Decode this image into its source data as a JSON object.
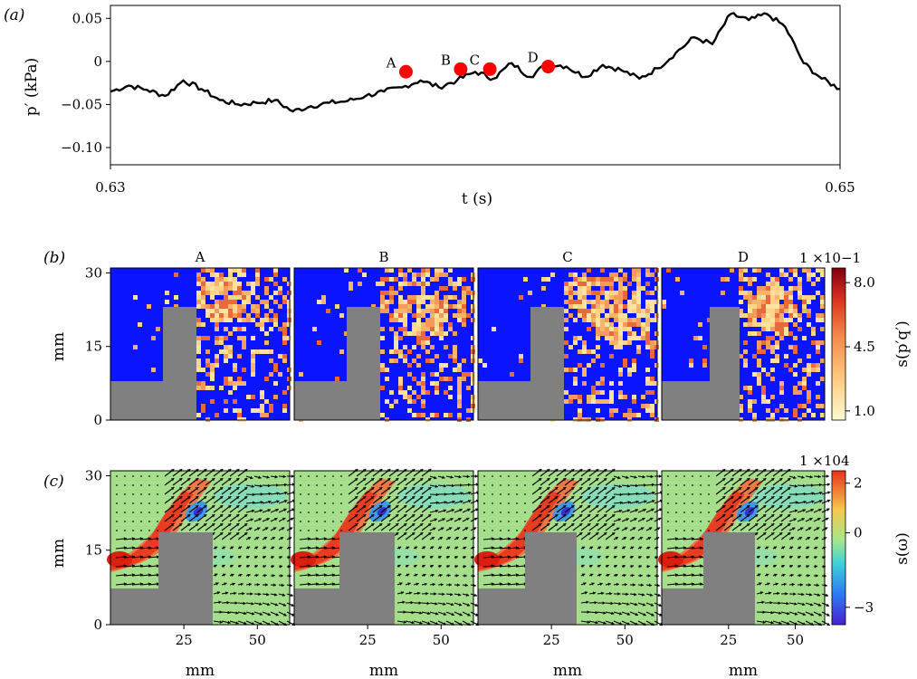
{
  "colors": {
    "pressure_line": "#000000",
    "marker": "#ff0000",
    "background_b": "#0a14ff",
    "bluff_body": "#808080",
    "quiver": "#000000"
  },
  "chart_data": [
    {
      "type": "line",
      "panel_label": "(a)",
      "xlabel": "t (s)",
      "ylabel": "p′ (kPa)",
      "xlim": [
        0.63,
        0.65
      ],
      "ylim": [
        -0.12,
        0.065
      ],
      "x_ticks": [
        "0.63",
        "0.65"
      ],
      "y_ticks": [
        "0.05",
        "0",
        "−0.05",
        "−0.10"
      ],
      "x_tick_values": [
        0.63,
        0.65
      ],
      "y_tick_values": [
        0.05,
        0,
        -0.05,
        -0.1
      ],
      "series": [
        {
          "x": [
            0.63,
            0.6305,
            0.631,
            0.6315,
            0.632,
            0.6325,
            0.633,
            0.6335,
            0.634,
            0.6345,
            0.635,
            0.6355,
            0.636,
            0.6365,
            0.637,
            0.6375,
            0.638,
            0.6385,
            0.639,
            0.6395,
            0.64,
            0.6405,
            0.641,
            0.6415,
            0.642,
            0.6425,
            0.643,
            0.6435,
            0.644,
            0.6445,
            0.645,
            0.6455,
            0.646,
            0.6465,
            0.647,
            0.6475,
            0.648,
            0.6485,
            0.649,
            0.6495,
            0.65
          ],
          "values": [
            -0.035,
            -0.028,
            -0.033,
            -0.04,
            -0.022,
            -0.032,
            -0.045,
            -0.05,
            -0.048,
            -0.045,
            -0.058,
            -0.052,
            -0.048,
            -0.046,
            -0.04,
            -0.035,
            -0.03,
            -0.022,
            -0.03,
            -0.022,
            -0.012,
            -0.02,
            -0.002,
            -0.018,
            -0.002,
            -0.006,
            -0.018,
            -0.004,
            -0.01,
            -0.02,
            -0.008,
            0.01,
            0.028,
            0.02,
            0.055,
            0.048,
            0.055,
            0.04,
            -0.002,
            -0.02,
            -0.032
          ]
        }
      ],
      "annotations": [
        {
          "label": "A",
          "x": 0.6381,
          "y": -0.012
        },
        {
          "label": "B",
          "x": 0.6396,
          "y": -0.009
        },
        {
          "label": "C",
          "x": 0.6404,
          "y": -0.009
        },
        {
          "label": "D",
          "x": 0.642,
          "y": -0.006
        }
      ]
    },
    {
      "type": "heatmap",
      "panel_label": "(b)",
      "subplot_titles": [
        "A",
        "B",
        "C",
        "D"
      ],
      "ylabel": "mm",
      "y_ticks": [
        "0",
        "15",
        "30"
      ],
      "colorbar": {
        "label": "s(p′q′)",
        "scale": "1 ×10−1",
        "ticks": [
          "8.0",
          "4.5",
          "1.0"
        ],
        "range": [
          0.5,
          8.8
        ]
      }
    },
    {
      "type": "heatmap",
      "panel_label": "(c)",
      "subplot_titles": [
        "A",
        "B",
        "C",
        "D"
      ],
      "xlabel": "mm",
      "ylabel": "mm",
      "x_ticks": [
        "25",
        "50"
      ],
      "y_ticks": [
        "0",
        "15",
        "30"
      ],
      "colorbar": {
        "label": "s(ω)",
        "scale": "1 ×104",
        "ticks": [
          "2",
          "0",
          "−3"
        ],
        "range": [
          -3.7,
          2.5
        ]
      }
    }
  ]
}
